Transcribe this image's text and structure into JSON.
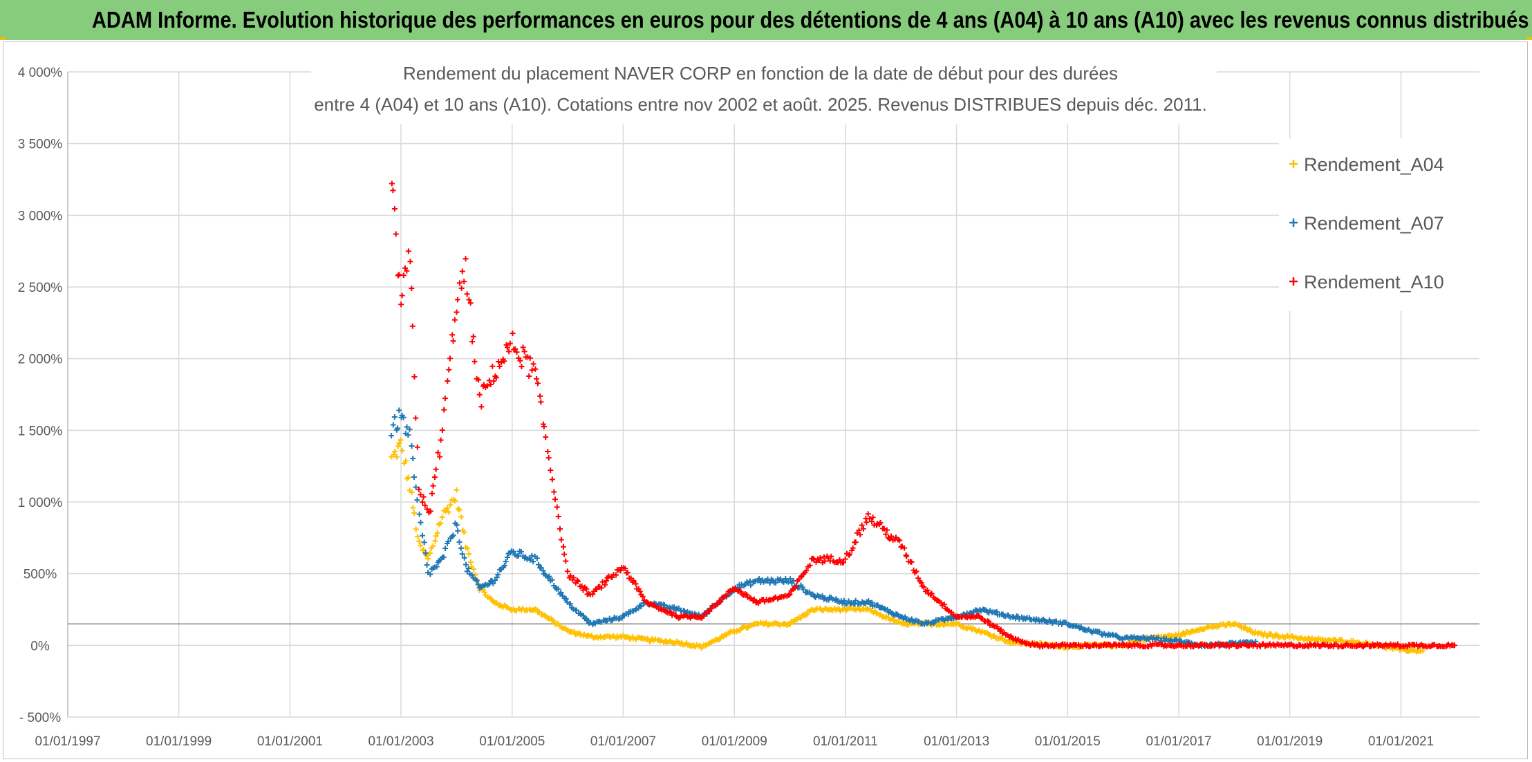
{
  "header": {
    "title": "ADAM Informe. Evolution historique des performances en euros pour des détentions de 4 ans (A04) à 10 ans (A10) avec les revenus connus distribués",
    "background_color": "#86cc7c"
  },
  "chart_data": {
    "type": "scatter",
    "title_lines": [
      "Rendement du placement NAVER CORP en fonction de la date de début pour des durées",
      "entre 4 (A04) et 10 ans (A10). Cotations entre nov 2002 et août. 2025. Revenus DISTRIBUES depuis déc. 2011."
    ],
    "xlabel": "",
    "ylabel": "",
    "x_axis": {
      "type": "date",
      "min": "1997-01-01",
      "max": "2022-06-01",
      "tick_labels": [
        "01/01/1997",
        "01/01/1999",
        "01/01/2001",
        "01/01/2003",
        "01/01/2005",
        "01/01/2007",
        "01/01/2009",
        "01/01/2011",
        "01/01/2013",
        "01/01/2015",
        "01/01/2017",
        "01/01/2019",
        "01/01/2021"
      ]
    },
    "y_axis": {
      "min": -500,
      "max": 4000,
      "step": 500,
      "unit": "%",
      "tick_labels": [
        "4 000%",
        "3 500%",
        "3 000%",
        "2 500%",
        "2 000%",
        "1 500%",
        "1 000%",
        "500%",
        "0%",
        "- 500%"
      ]
    },
    "grid": true,
    "reference_line": 150,
    "legend_position": "top-right",
    "marker": "+",
    "series": [
      {
        "name": "Rendement_A04",
        "color": "#ffc000",
        "x": [
          "2002-11-01",
          "2003-01-01",
          "2003-03-01",
          "2003-05-01",
          "2003-07-01",
          "2003-10-01",
          "2004-01-01",
          "2004-03-01",
          "2004-06-01",
          "2004-09-01",
          "2005-01-01",
          "2005-06-01",
          "2006-01-01",
          "2006-06-01",
          "2007-01-01",
          "2007-06-01",
          "2008-01-01",
          "2008-06-01",
          "2009-01-01",
          "2009-06-01",
          "2010-01-01",
          "2010-06-01",
          "2011-01-01",
          "2011-06-01",
          "2012-01-01",
          "2012-06-01",
          "2013-01-01",
          "2013-06-01",
          "2014-01-01",
          "2014-06-01",
          "2015-01-01",
          "2015-06-01",
          "2016-01-01",
          "2016-06-01",
          "2017-01-01",
          "2017-06-01",
          "2018-01-01",
          "2018-06-01",
          "2019-01-01",
          "2019-06-01",
          "2020-01-01",
          "2020-06-01",
          "2021-01-01",
          "2021-06-01"
        ],
        "y": [
          1300,
          1400,
          1100,
          700,
          600,
          900,
          1050,
          700,
          400,
          300,
          250,
          250,
          100,
          60,
          60,
          40,
          20,
          -10,
          100,
          150,
          150,
          250,
          250,
          250,
          150,
          150,
          150,
          100,
          20,
          10,
          -10,
          0,
          0,
          50,
          70,
          120,
          150,
          80,
          60,
          40,
          30,
          10,
          -30,
          -40
        ]
      },
      {
        "name": "Rendement_A07",
        "color": "#1f77b4",
        "x": [
          "2002-11-01",
          "2003-01-01",
          "2003-03-01",
          "2003-05-01",
          "2003-07-01",
          "2003-10-01",
          "2004-01-01",
          "2004-03-01",
          "2004-06-01",
          "2004-09-01",
          "2005-01-01",
          "2005-06-01",
          "2006-01-01",
          "2006-06-01",
          "2007-01-01",
          "2007-06-01",
          "2008-01-01",
          "2008-06-01",
          "2009-01-01",
          "2009-06-01",
          "2010-01-01",
          "2010-06-01",
          "2011-01-01",
          "2011-06-01",
          "2012-01-01",
          "2012-06-01",
          "2013-01-01",
          "2013-06-01",
          "2014-01-01",
          "2014-06-01",
          "2015-01-01",
          "2015-06-01",
          "2016-01-01",
          "2016-06-01",
          "2017-01-01",
          "2017-06-01",
          "2018-01-01",
          "2018-06-01"
        ],
        "y": [
          1500,
          1600,
          1450,
          900,
          500,
          600,
          850,
          550,
          400,
          450,
          650,
          600,
          300,
          150,
          200,
          300,
          250,
          200,
          400,
          450,
          450,
          350,
          300,
          300,
          200,
          150,
          200,
          250,
          200,
          180,
          150,
          100,
          50,
          50,
          30,
          0,
          10,
          20
        ]
      },
      {
        "name": "Rendement_A10",
        "color": "#ff0000",
        "x": [
          "2002-11-01",
          "2003-01-01",
          "2003-03-01",
          "2003-05-01",
          "2003-07-01",
          "2003-10-01",
          "2004-01-01",
          "2004-03-01",
          "2004-06-01",
          "2004-09-01",
          "2005-01-01",
          "2005-06-01",
          "2006-01-01",
          "2006-06-01",
          "2007-01-01",
          "2007-06-01",
          "2008-01-01",
          "2008-06-01",
          "2009-01-01",
          "2009-06-01",
          "2010-01-01",
          "2010-06-01",
          "2011-01-01",
          "2011-06-01",
          "2012-01-01",
          "2012-06-01",
          "2013-01-01",
          "2013-06-01",
          "2014-01-01",
          "2014-06-01",
          "2015-01-01",
          "2015-06-01",
          "2016-01-01",
          "2017-01-01",
          "2018-01-01",
          "2019-01-01",
          "2020-01-01",
          "2021-01-01",
          "2022-01-01"
        ],
        "y": [
          3200,
          2400,
          2700,
          1100,
          900,
          1500,
          2400,
          2600,
          1700,
          1900,
          2100,
          1900,
          500,
          350,
          550,
          300,
          200,
          200,
          400,
          300,
          350,
          600,
          600,
          900,
          700,
          400,
          200,
          200,
          50,
          0,
          0,
          0,
          0,
          0,
          0,
          0,
          0,
          0,
          0
        ]
      }
    ]
  }
}
